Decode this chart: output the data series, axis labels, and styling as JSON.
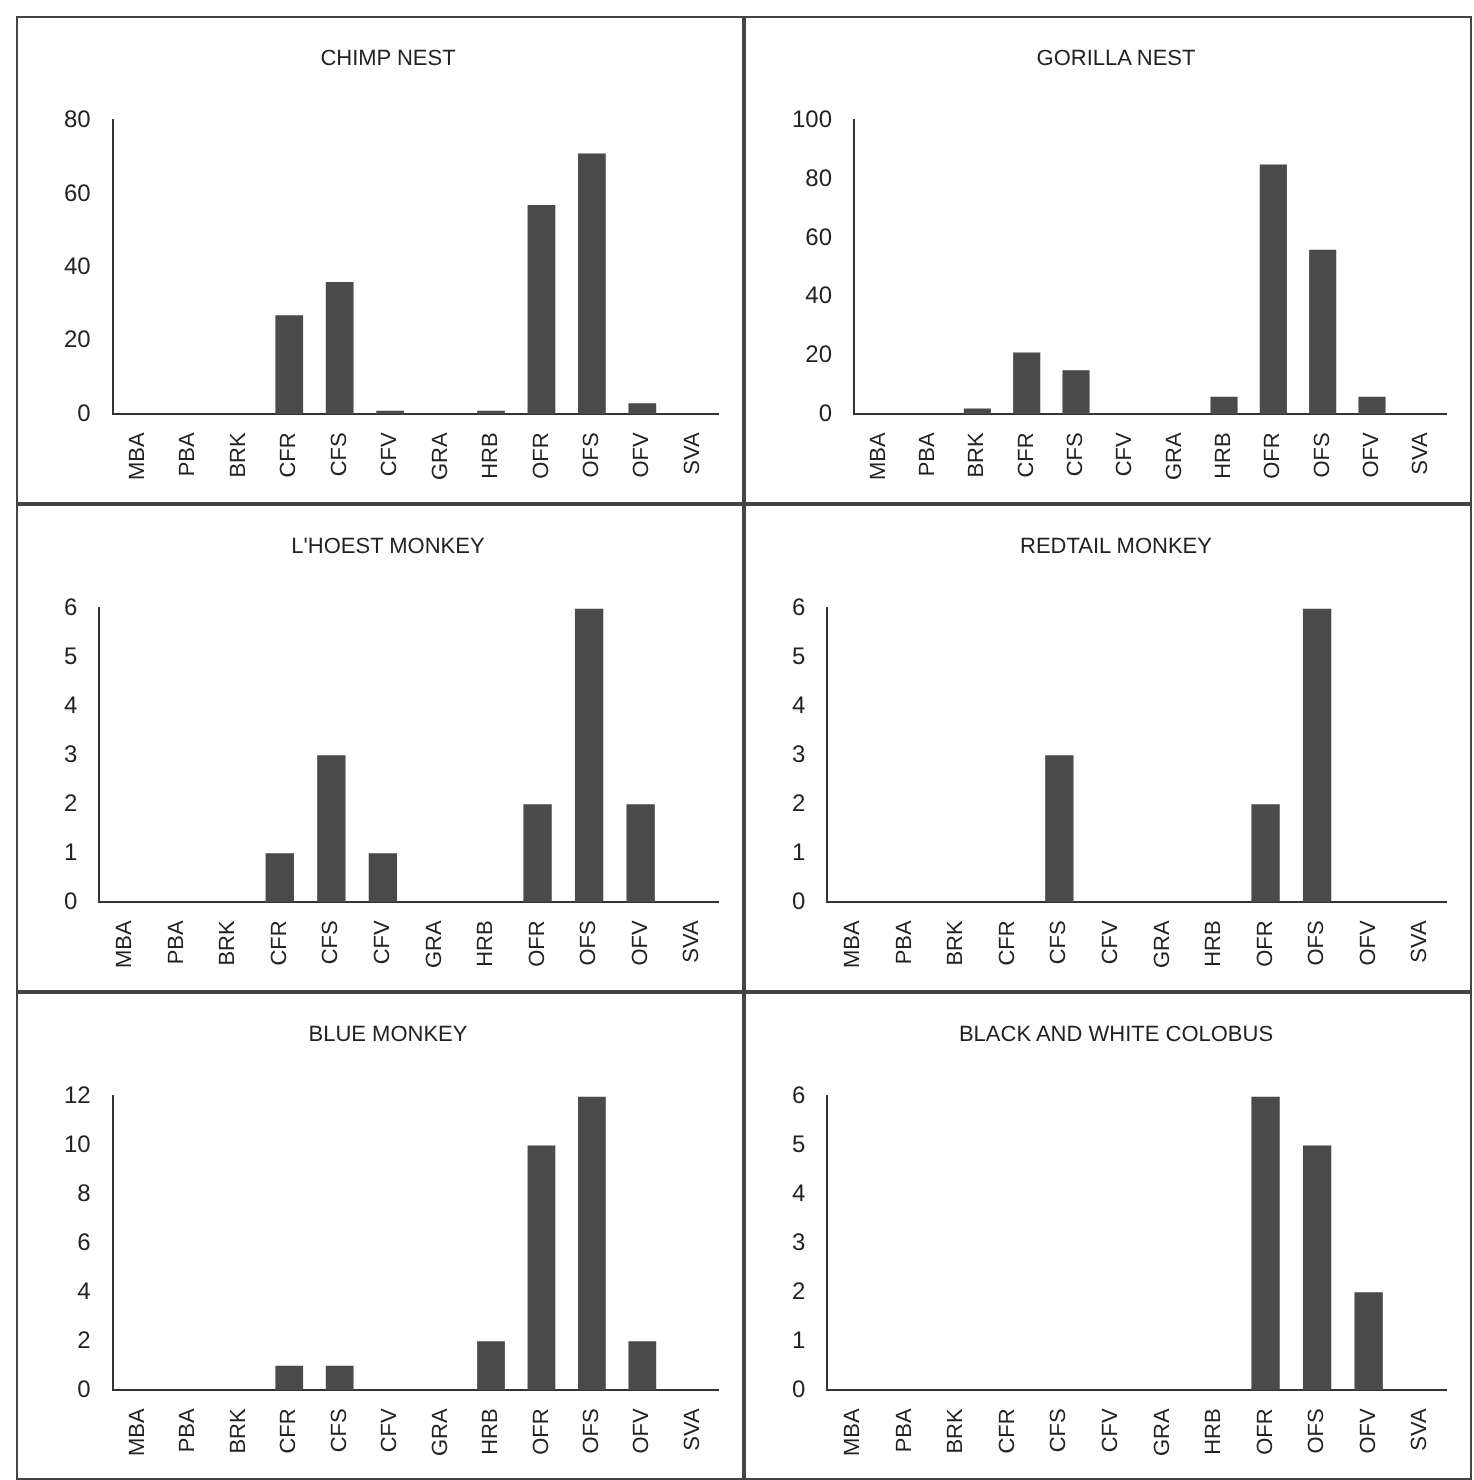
{
  "chart_data": [
    {
      "type": "bar",
      "title": "CHIMP NEST",
      "categories": [
        "MBA",
        "PBA",
        "BRK",
        "CFR",
        "CFS",
        "CFV",
        "GRA",
        "HRB",
        "OFR",
        "OFS",
        "OFV",
        "SVA"
      ],
      "values": [
        0,
        0,
        0,
        27,
        36,
        1,
        0,
        1,
        57,
        71,
        3,
        0
      ],
      "color": "#4a4a4a",
      "ylim": [
        0,
        80
      ],
      "yticks": [
        0,
        20,
        40,
        60,
        80
      ],
      "grid": false,
      "legend": false
    },
    {
      "type": "bar",
      "title": "GORILLA NEST",
      "categories": [
        "MBA",
        "PBA",
        "BRK",
        "CFR",
        "CFS",
        "CFV",
        "GRA",
        "HRB",
        "OFR",
        "OFS",
        "OFV",
        "SVA"
      ],
      "values": [
        0,
        0,
        2,
        21,
        15,
        0,
        0,
        6,
        85,
        56,
        6,
        0
      ],
      "color": "#4a4a4a",
      "ylim": [
        0,
        100
      ],
      "yticks": [
        0,
        20,
        40,
        60,
        80,
        100
      ],
      "grid": false,
      "legend": false
    },
    {
      "type": "bar",
      "title": "L'HOEST MONKEY",
      "categories": [
        "MBA",
        "PBA",
        "BRK",
        "CFR",
        "CFS",
        "CFV",
        "GRA",
        "HRB",
        "OFR",
        "OFS",
        "OFV",
        "SVA"
      ],
      "values": [
        0,
        0,
        0,
        1,
        3,
        1,
        0,
        0,
        2,
        6,
        2,
        0
      ],
      "color": "#4a4a4a",
      "ylim": [
        0,
        6
      ],
      "yticks": [
        0,
        1,
        2,
        3,
        4,
        5,
        6
      ],
      "grid": false,
      "legend": false
    },
    {
      "type": "bar",
      "title": "REDTAIL MONKEY",
      "categories": [
        "MBA",
        "PBA",
        "BRK",
        "CFR",
        "CFS",
        "CFV",
        "GRA",
        "HRB",
        "OFR",
        "OFS",
        "OFV",
        "SVA"
      ],
      "values": [
        0,
        0,
        0,
        0,
        3,
        0,
        0,
        0,
        2,
        6,
        0,
        0
      ],
      "color": "#4a4a4a",
      "ylim": [
        0,
        6
      ],
      "yticks": [
        0,
        1,
        2,
        3,
        4,
        5,
        6
      ],
      "grid": false,
      "legend": false
    },
    {
      "type": "bar",
      "title": "BLUE MONKEY",
      "categories": [
        "MBA",
        "PBA",
        "BRK",
        "CFR",
        "CFS",
        "CFV",
        "GRA",
        "HRB",
        "OFR",
        "OFS",
        "OFV",
        "SVA"
      ],
      "values": [
        0,
        0,
        0,
        1,
        1,
        0,
        0,
        2,
        10,
        12,
        2,
        0
      ],
      "color": "#4a4a4a",
      "ylim": [
        0,
        12
      ],
      "yticks": [
        0,
        2,
        4,
        6,
        8,
        10,
        12
      ],
      "grid": false,
      "legend": false
    },
    {
      "type": "bar",
      "title": "BLACK AND WHITE COLOBUS",
      "categories": [
        "MBA",
        "PBA",
        "BRK",
        "CFR",
        "CFS",
        "CFV",
        "GRA",
        "HRB",
        "OFR",
        "OFS",
        "OFV",
        "SVA"
      ],
      "values": [
        0,
        0,
        0,
        0,
        0,
        0,
        0,
        0,
        6,
        5,
        2,
        0
      ],
      "color": "#4a4a4a",
      "ylim": [
        0,
        6
      ],
      "yticks": [
        0,
        1,
        2,
        3,
        4,
        5,
        6
      ],
      "grid": false,
      "legend": false
    }
  ]
}
